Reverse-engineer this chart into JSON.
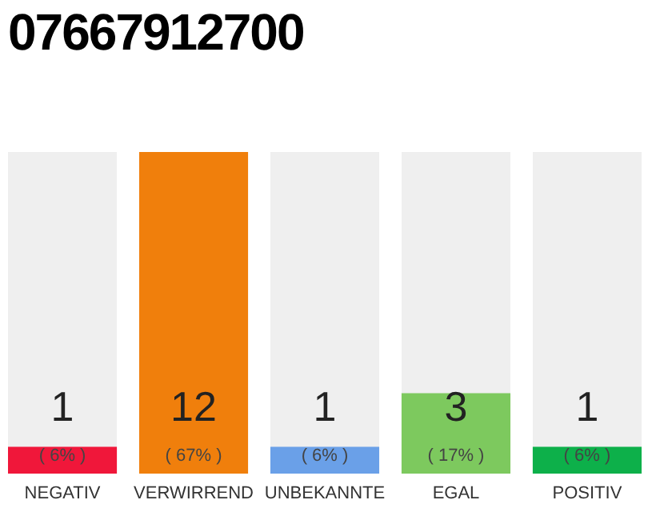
{
  "chart_data": {
    "type": "bar",
    "title": "07667912700",
    "categories": [
      "NEGATIV",
      "VERWIRREND",
      "UNBEKANNTE",
      "EGAL",
      "POSITIV"
    ],
    "values": [
      1,
      12,
      1,
      3,
      1
    ],
    "colors": [
      "#f0173a",
      "#f07f0c",
      "#6aa0e8",
      "#7dc95e",
      "#0db04a"
    ],
    "ylim": [
      0,
      12
    ],
    "tick_labels": "x",
    "data_labels": true,
    "annotations": [
      "( 6% )",
      "( 67% )",
      "( 6% )",
      "( 17% )",
      "( 6% )"
    ]
  }
}
